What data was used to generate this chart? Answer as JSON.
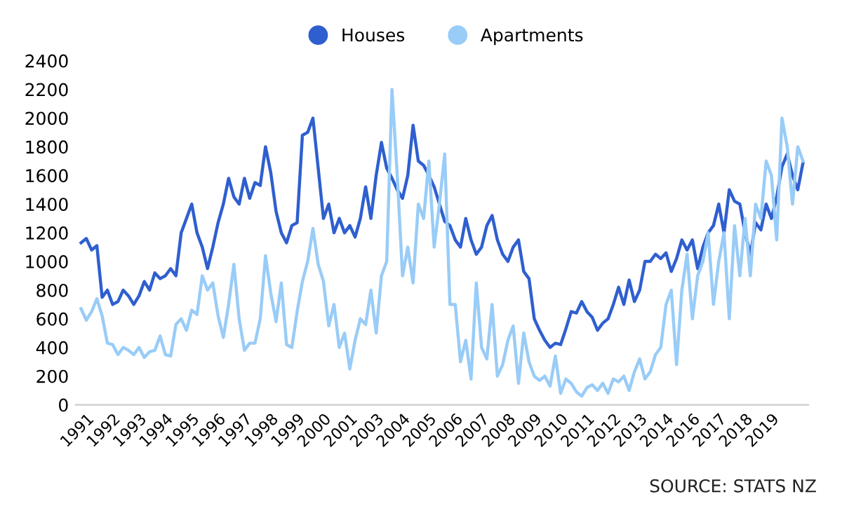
{
  "chart_data": {
    "type": "line",
    "categories": [
      null,
      "1991",
      null,
      null,
      null,
      null,
      "1992",
      null,
      null,
      null,
      null,
      "1993",
      null,
      null,
      null,
      null,
      "1994",
      null,
      null,
      null,
      null,
      "1995",
      null,
      null,
      null,
      null,
      "1996",
      null,
      null,
      null,
      null,
      "1997",
      null,
      null,
      null,
      null,
      "1998",
      null,
      null,
      null,
      null,
      "1999",
      null,
      null,
      null,
      null,
      "2000",
      null,
      null,
      null,
      null,
      "2001",
      null,
      null,
      null,
      null,
      "2003",
      null,
      null,
      null,
      null,
      "2004",
      null,
      null,
      null,
      null,
      "2005",
      null,
      null,
      null,
      null,
      "2006",
      null,
      null,
      null,
      null,
      "2007",
      null,
      null,
      null,
      null,
      "2008",
      null,
      null,
      null,
      null,
      "2009",
      null,
      null,
      null,
      null,
      "2010",
      null,
      null,
      null,
      null,
      "2011",
      null,
      null,
      null,
      null,
      "2012",
      null,
      null,
      null,
      null,
      "2013",
      null,
      null,
      null,
      null,
      "2014",
      null,
      null,
      null,
      null,
      "2016",
      null,
      null,
      null,
      null,
      "2017",
      null,
      null,
      null,
      null,
      "2018",
      null,
      null,
      null,
      null,
      "2019",
      null,
      null,
      null,
      null,
      null,
      null
    ],
    "series": [
      {
        "name": "Houses",
        "color": "#2f5fcf",
        "values": [
          1130,
          1160,
          1080,
          1110,
          750,
          800,
          700,
          720,
          800,
          760,
          700,
          760,
          860,
          800,
          920,
          880,
          900,
          950,
          900,
          1200,
          1300,
          1400,
          1200,
          1100,
          950,
          1100,
          1270,
          1400,
          1580,
          1450,
          1400,
          1580,
          1440,
          1550,
          1530,
          1800,
          1620,
          1350,
          1200,
          1130,
          1250,
          1270,
          1880,
          1900,
          2000,
          1650,
          1300,
          1400,
          1200,
          1300,
          1200,
          1250,
          1170,
          1300,
          1520,
          1300,
          1600,
          1830,
          1650,
          1580,
          1500,
          1440,
          1600,
          1950,
          1700,
          1670,
          1600,
          1520,
          1400,
          1280,
          1250,
          1150,
          1100,
          1300,
          1150,
          1050,
          1100,
          1250,
          1320,
          1150,
          1050,
          1000,
          1100,
          1150,
          930,
          880,
          600,
          520,
          450,
          400,
          430,
          420,
          530,
          650,
          640,
          720,
          650,
          610,
          520,
          570,
          600,
          700,
          820,
          700,
          870,
          720,
          800,
          1000,
          1000,
          1050,
          1020,
          1060,
          930,
          1020,
          1150,
          1080,
          1150,
          950,
          1100,
          1200,
          1250,
          1400,
          1200,
          1500,
          1420,
          1400,
          1200,
          1050,
          1270,
          1220,
          1400,
          1300,
          1450,
          1660,
          1750,
          1600,
          1500,
          1690
        ]
      },
      {
        "name": "Apartments",
        "color": "#99ccf7",
        "values": [
          670,
          590,
          650,
          740,
          620,
          430,
          420,
          350,
          400,
          380,
          350,
          400,
          330,
          370,
          380,
          480,
          350,
          340,
          560,
          600,
          520,
          660,
          630,
          900,
          800,
          850,
          620,
          470,
          700,
          980,
          600,
          380,
          430,
          430,
          600,
          1040,
          780,
          580,
          850,
          420,
          400,
          650,
          860,
          1000,
          1230,
          980,
          860,
          550,
          700,
          400,
          500,
          250,
          450,
          600,
          560,
          800,
          500,
          900,
          1000,
          2200,
          1600,
          900,
          1100,
          850,
          1400,
          1300,
          1700,
          1100,
          1400,
          1750,
          700,
          700,
          300,
          450,
          180,
          850,
          400,
          320,
          700,
          200,
          280,
          450,
          550,
          150,
          500,
          300,
          200,
          170,
          200,
          130,
          340,
          80,
          180,
          150,
          90,
          60,
          120,
          140,
          100,
          150,
          80,
          180,
          160,
          200,
          100,
          230,
          320,
          180,
          230,
          350,
          400,
          700,
          800,
          280,
          800,
          1050,
          600,
          900,
          1000,
          1200,
          700,
          1000,
          1200,
          600,
          1250,
          900,
          1300,
          900,
          1400,
          1300,
          1700,
          1600,
          1150,
          2000,
          1800,
          1400,
          1800,
          1700
        ]
      }
    ],
    "ylim": [
      0,
      2400
    ],
    "yticks": [
      0,
      200,
      400,
      600,
      800,
      1000,
      1200,
      1400,
      1600,
      1800,
      2000,
      2200,
      2400
    ],
    "legend": "top",
    "grid": false,
    "annotations": [
      "SOURCE: STATS NZ"
    ]
  }
}
